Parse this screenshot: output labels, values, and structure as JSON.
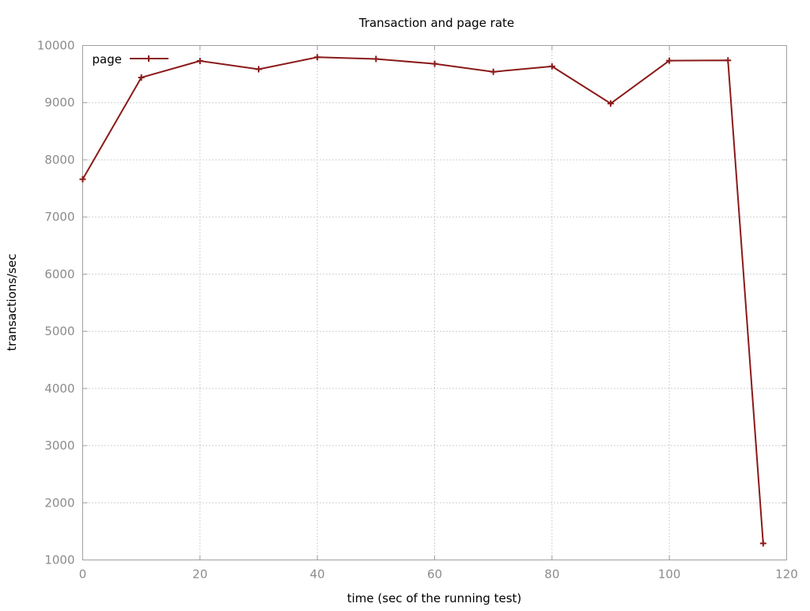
{
  "chart_data": {
    "type": "line",
    "title": "Transaction and page rate",
    "xlabel": "time (sec of the running test)",
    "ylabel": "transactions/sec",
    "xlim": [
      0,
      120
    ],
    "ylim": [
      1000,
      10000
    ],
    "xticks": [
      0,
      20,
      40,
      60,
      80,
      100,
      120
    ],
    "yticks": [
      1000,
      2000,
      3000,
      4000,
      5000,
      6000,
      7000,
      8000,
      9000,
      10000
    ],
    "grid": true,
    "legend_position": "top-left",
    "series": [
      {
        "name": "page",
        "color": "#8b1a1a",
        "marker": "plus",
        "x": [
          0,
          10,
          20,
          30,
          40,
          50,
          60,
          70,
          80,
          90,
          100,
          110,
          116
        ],
        "y": [
          7660,
          9440,
          9730,
          9585,
          9795,
          9765,
          9680,
          9540,
          9635,
          8985,
          9735,
          9740,
          1290
        ]
      }
    ]
  }
}
